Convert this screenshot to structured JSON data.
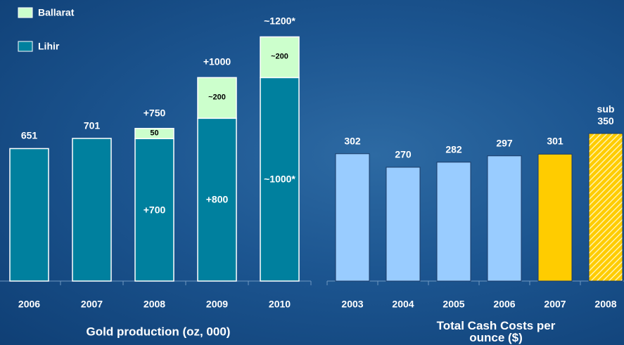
{
  "chart_data": [
    {
      "type": "stacked-bar",
      "title": "Gold production (oz, 000)",
      "categories": [
        "2006",
        "2007",
        "2008",
        "2009",
        "2010"
      ],
      "series": [
        {
          "name": "Lihir",
          "color": "#00809e",
          "values": [
            651,
            701,
            700,
            800,
            1000
          ],
          "value_labels": [
            "651",
            "701",
            "+700",
            "+800",
            "~1000*"
          ]
        },
        {
          "name": "Ballarat",
          "color": "#ccffcc",
          "values": [
            null,
            null,
            50,
            200,
            200
          ],
          "value_labels": [
            null,
            null,
            "50",
            "~200",
            "~200"
          ]
        }
      ],
      "totals": {
        "values": [
          null,
          null,
          750,
          1000,
          1200
        ],
        "value_labels": [
          null,
          null,
          "+750",
          "+1000",
          "~1200*"
        ]
      },
      "ylim": [
        0,
        1250
      ],
      "legend": "top-left"
    },
    {
      "type": "bar",
      "title": "Total Cash Costs per ounce ($)",
      "categories": [
        "2003",
        "2004",
        "2005",
        "2006",
        "2007",
        "2008"
      ],
      "values": [
        302,
        270,
        282,
        297,
        301,
        350
      ],
      "value_labels": [
        "302",
        "270",
        "282",
        "297",
        "301",
        "sub\n350"
      ],
      "colors": [
        "#99ccff",
        "#99ccff",
        "#99ccff",
        "#99ccff",
        "#ffcc00",
        "#ffcc00"
      ],
      "hatched": [
        false,
        false,
        false,
        false,
        false,
        true
      ],
      "ylim": [
        0,
        400
      ]
    }
  ]
}
